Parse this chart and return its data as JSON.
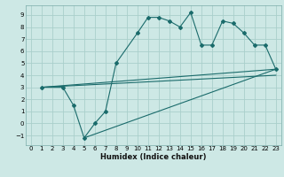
{
  "xlabel": "Humidex (Indice chaleur)",
  "bg_color": "#cde8e5",
  "grid_color": "#aacfcb",
  "line_color": "#1a6b6b",
  "curve_x": [
    1,
    3,
    4,
    5,
    6,
    7,
    8,
    10,
    11,
    12,
    13,
    14,
    15,
    16,
    17,
    18,
    19,
    20,
    21,
    22,
    23
  ],
  "curve_y": [
    3.0,
    3.0,
    1.5,
    -1.2,
    0.0,
    1.0,
    5.0,
    7.5,
    8.8,
    8.8,
    8.5,
    8.0,
    9.2,
    6.5,
    6.5,
    8.5,
    8.3,
    7.5,
    6.5,
    6.5,
    4.5
  ],
  "line1_x": [
    1,
    23
  ],
  "line1_y": [
    3.0,
    4.5
  ],
  "line2_x": [
    1,
    23
  ],
  "line2_y": [
    3.0,
    4.0
  ],
  "line3_x": [
    5,
    23
  ],
  "line3_y": [
    -1.2,
    4.5
  ],
  "xlim": [
    -0.5,
    23.5
  ],
  "ylim": [
    -1.8,
    9.8
  ],
  "xticks": [
    0,
    1,
    2,
    3,
    4,
    5,
    6,
    7,
    8,
    9,
    10,
    11,
    12,
    13,
    14,
    15,
    16,
    17,
    18,
    19,
    20,
    21,
    22,
    23
  ],
  "yticks": [
    -1,
    0,
    1,
    2,
    3,
    4,
    5,
    6,
    7,
    8,
    9
  ]
}
